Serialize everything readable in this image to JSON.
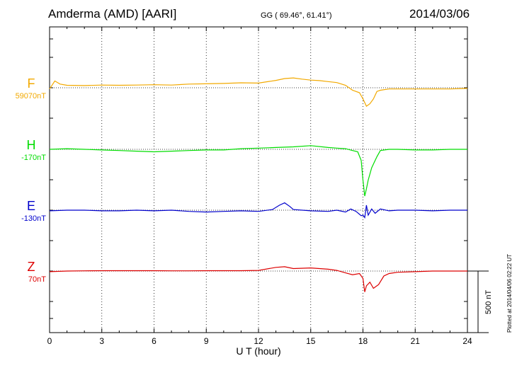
{
  "header": {
    "station": "Amderma (AMD)  [AARI]",
    "coords": "GG ( 69.46°,  61.41°)",
    "date": "2014/03/06"
  },
  "footer_note": "Plotted at 2014/04/06 02:22 UT",
  "scale_label": "500 nT",
  "colors": {
    "F": "#f2a900",
    "H": "#00dd00",
    "E": "#0000cc",
    "Z": "#dd0000",
    "grid": "#000000"
  },
  "chart_data": {
    "type": "line",
    "xlabel": "U T (hour)",
    "xlim": [
      0,
      24
    ],
    "x_ticks": [
      "0",
      "3",
      "6",
      "9",
      "12",
      "15",
      "18",
      "21",
      "24"
    ],
    "scale_nT": 500,
    "series": [
      {
        "name": "F",
        "baseline": "59070nT",
        "x": [
          0,
          0.3,
          0.6,
          1,
          2,
          3,
          4,
          5,
          6,
          7,
          8,
          9,
          10,
          11,
          12,
          13,
          13.5,
          14,
          14.5,
          15,
          15.5,
          16,
          16.5,
          17,
          17.4,
          17.8,
          18.0,
          18.2,
          18.4,
          18.6,
          18.8,
          19,
          19.5,
          20,
          21,
          22,
          23,
          24
        ],
        "y": [
          -10,
          55,
          30,
          20,
          18,
          22,
          20,
          22,
          25,
          22,
          30,
          32,
          35,
          40,
          38,
          60,
          75,
          80,
          70,
          62,
          58,
          50,
          42,
          20,
          -20,
          -40,
          -90,
          -150,
          -130,
          -90,
          -30,
          -20,
          -10,
          -10,
          -10,
          -10,
          -10,
          -5
        ]
      },
      {
        "name": "H",
        "baseline": "-170nT",
        "x": [
          0,
          1,
          2,
          3,
          4,
          5,
          6,
          7,
          8,
          9,
          10,
          11,
          12,
          13,
          14,
          15,
          16,
          16.5,
          17,
          17.4,
          17.7,
          17.9,
          18.0,
          18.1,
          18.2,
          18.3,
          18.5,
          18.8,
          19,
          19.5,
          20,
          21,
          22,
          23,
          24
        ],
        "y": [
          0,
          5,
          0,
          -5,
          -10,
          -15,
          -20,
          -15,
          -10,
          -5,
          -5,
          5,
          10,
          15,
          20,
          30,
          15,
          10,
          5,
          -10,
          -20,
          -90,
          -250,
          -380,
          -320,
          -250,
          -150,
          -60,
          -10,
          0,
          0,
          -5,
          -5,
          0,
          0
        ]
      },
      {
        "name": "E",
        "baseline": "-130nT",
        "x": [
          0,
          1,
          2,
          3,
          4,
          5,
          6,
          7,
          8,
          9,
          10,
          11,
          12,
          12.8,
          13.2,
          13.5,
          13.8,
          14,
          15,
          16,
          16.5,
          17,
          17.3,
          17.6,
          17.9,
          18.0,
          18.1,
          18.2,
          18.3,
          18.5,
          18.7,
          19,
          19.5,
          20,
          21,
          22,
          23,
          24
        ],
        "y": [
          -5,
          0,
          0,
          -5,
          -5,
          0,
          -5,
          0,
          -10,
          -15,
          -10,
          -5,
          -10,
          5,
          40,
          60,
          30,
          5,
          -5,
          -10,
          0,
          -15,
          10,
          -10,
          -45,
          -40,
          -60,
          40,
          -40,
          10,
          -25,
          10,
          -5,
          0,
          0,
          -5,
          0,
          0
        ]
      },
      {
        "name": "Z",
        "baseline": "70nT",
        "x": [
          0,
          1,
          2,
          3,
          4,
          5,
          6,
          7,
          8,
          9,
          10,
          11,
          12,
          13,
          13.5,
          14,
          15,
          16,
          16.5,
          17,
          17.4,
          17.8,
          18.0,
          18.1,
          18.2,
          18.4,
          18.6,
          18.9,
          19.2,
          19.5,
          20,
          21,
          22,
          23,
          24
        ],
        "y": [
          -5,
          0,
          2,
          3,
          3,
          3,
          3,
          2,
          2,
          3,
          3,
          3,
          5,
          30,
          35,
          20,
          25,
          15,
          5,
          -15,
          -30,
          -20,
          -60,
          -170,
          -120,
          -90,
          -140,
          -110,
          -40,
          -20,
          -10,
          -5,
          0,
          0,
          0
        ]
      }
    ]
  }
}
